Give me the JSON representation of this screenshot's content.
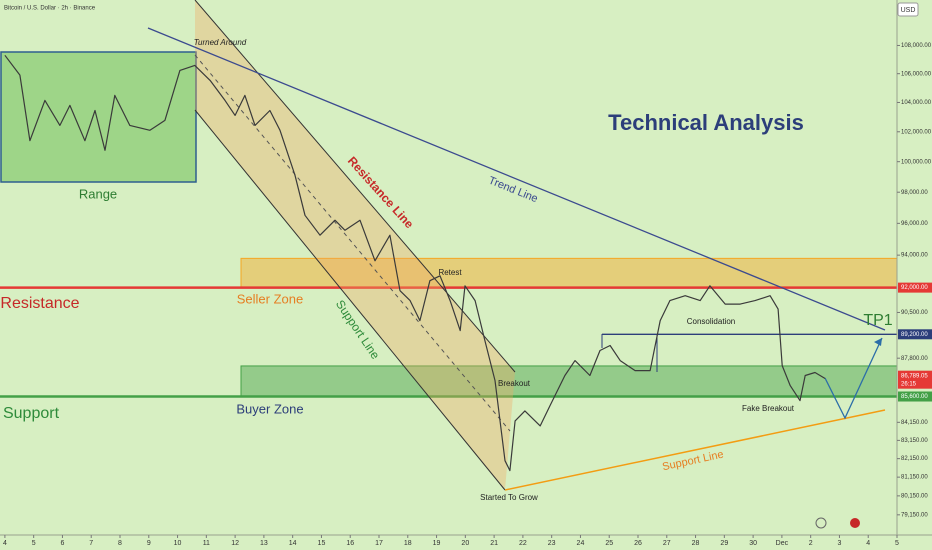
{
  "chart_data": {
    "type": "line",
    "title": "Bitcoin / U.S. Dollar · 2h · Binance",
    "currency": "USD",
    "log_scale": true,
    "color": "#3a3a3a",
    "xlim": [
      -0.17,
      31
    ],
    "ylim": [
      78100,
      111300
    ],
    "x": [
      0,
      0.52,
      0.87,
      1.39,
      1.91,
      2.26,
      2.78,
      3.13,
      3.48,
      3.82,
      4.34,
      5.04,
      5.56,
      6.08,
      6.6,
      7.13,
      7.65,
      8.0,
      8.34,
      8.69,
      9.21,
      9.56,
      10.08,
      10.43,
      10.95,
      11.47,
      11.82,
      12.34,
      12.86,
      13.38,
      13.73,
      14.08,
      14.42,
      14.77,
      15.12,
      15.47,
      15.82,
      15.99,
      16.34,
      16.68,
      17.03,
      17.38,
      17.55,
      17.73,
      18.07,
      18.6,
      18.94,
      19.46,
      19.81,
      20.33,
      20.68,
      21.03,
      21.38,
      21.9,
      22.42,
      22.77,
      23.11,
      23.64,
      24.16,
      24.5,
      25.03,
      25.55,
      26.07,
      26.59,
      26.87,
      27.01,
      27.29,
      27.63,
      27.81,
      28.15,
      28.5
    ],
    "values": [
      107300,
      105900,
      101400,
      104140,
      102430,
      103800,
      101400,
      103450,
      100760,
      104490,
      102430,
      102100,
      102770,
      106230,
      106580,
      105530,
      104140,
      103110,
      104490,
      102430,
      103450,
      102100,
      99100,
      96510,
      95250,
      96200,
      95560,
      96200,
      93650,
      95250,
      91810,
      91210,
      90010,
      92420,
      92720,
      91210,
      89420,
      92110,
      91210,
      88830,
      86510,
      82040,
      81500,
      84230,
      84790,
      83950,
      85070,
      86800,
      87660,
      86800,
      88250,
      88540,
      87660,
      87080,
      87080,
      90010,
      91210,
      91510,
      91210,
      92110,
      91000,
      91000,
      91210,
      91510,
      90700,
      87370,
      86220,
      85370,
      86800,
      86970,
      86630
    ],
    "yticks": [
      {
        "value": 108000,
        "label": "108,000.00"
      },
      {
        "value": 106000,
        "label": "106,000.00"
      },
      {
        "value": 104000,
        "label": "104,000.00"
      },
      {
        "value": 102000,
        "label": "102,000.00"
      },
      {
        "value": 100000,
        "label": "100,000.00"
      },
      {
        "value": 98000,
        "label": "98,000.00"
      },
      {
        "value": 96000,
        "label": "96,000.00"
      },
      {
        "value": 94000,
        "label": "94,000.00"
      },
      {
        "value": 90500,
        "label": "90,500.00"
      },
      {
        "value": 87800,
        "label": "87,800.00"
      },
      {
        "value": 84150,
        "label": "84,150.00"
      },
      {
        "value": 83150,
        "label": "83,150.00"
      },
      {
        "value": 82150,
        "label": "82,150.00"
      },
      {
        "value": 81150,
        "label": "81,150.00"
      },
      {
        "value": 80150,
        "label": "80,150.00"
      },
      {
        "value": 79150,
        "label": "79,150.00"
      }
    ],
    "price_tags": [
      {
        "value": 92000,
        "label": "92,000.00",
        "color": "#e53935"
      },
      {
        "value": 89200,
        "label": "89,200.00",
        "color": "#2c3e7a"
      },
      {
        "value": 86789.05,
        "label": "86,789.05",
        "color": "#e53935",
        "countdown": "26:15"
      },
      {
        "value": 85600,
        "label": "85,600.00",
        "color": "#43a047"
      }
    ],
    "xticks": [
      {
        "value": 0,
        "label": "4"
      },
      {
        "value": 1,
        "label": "5"
      },
      {
        "value": 2,
        "label": "6"
      },
      {
        "value": 3,
        "label": "7"
      },
      {
        "value": 4,
        "label": "8"
      },
      {
        "value": 5,
        "label": "9"
      },
      {
        "value": 6,
        "label": "10"
      },
      {
        "value": 7,
        "label": "11"
      },
      {
        "value": 8,
        "label": "12"
      },
      {
        "value": 9,
        "label": "13"
      },
      {
        "value": 10,
        "label": "14"
      },
      {
        "value": 11,
        "label": "15"
      },
      {
        "value": 12,
        "label": "16"
      },
      {
        "value": 13,
        "label": "17"
      },
      {
        "value": 14,
        "label": "18"
      },
      {
        "value": 15,
        "label": "19"
      },
      {
        "value": 16,
        "label": "20"
      },
      {
        "value": 17,
        "label": "21"
      },
      {
        "value": 18,
        "label": "22"
      },
      {
        "value": 19,
        "label": "23"
      },
      {
        "value": 20,
        "label": "24"
      },
      {
        "value": 21,
        "label": "25"
      },
      {
        "value": 22,
        "label": "26"
      },
      {
        "value": 23,
        "label": "27"
      },
      {
        "value": 24,
        "label": "28"
      },
      {
        "value": 25,
        "label": "29"
      },
      {
        "value": 26,
        "label": "30"
      },
      {
        "value": 27,
        "label": "Dec"
      },
      {
        "value": 28,
        "label": "2"
      },
      {
        "value": 29,
        "label": "3"
      },
      {
        "value": 30,
        "label": "4"
      },
      {
        "value": 31,
        "label": "5"
      }
    ],
    "zones": [
      {
        "low": 92000,
        "high": 93800,
        "color": "#f5a623"
      },
      {
        "low": 85600,
        "high": 87350,
        "color": "#43a047"
      }
    ],
    "levels": [
      {
        "value": 92000,
        "color": "#e53935"
      },
      {
        "value": 85600,
        "color": "#43a047"
      },
      {
        "value": 89200,
        "color": "#2c3e7a"
      }
    ],
    "annotations": [
      "Turned Around",
      "Range",
      "Trend Line",
      "Resistance Line",
      "Support Line",
      "Seller Zone",
      "Resistance",
      "Retest",
      "Consolidation",
      "TP1",
      "Breakout",
      "Support",
      "Buyer Zone",
      "Fake Breakout",
      "Support Line",
      "Started To Grow",
      "Technical Analysis"
    ]
  }
}
